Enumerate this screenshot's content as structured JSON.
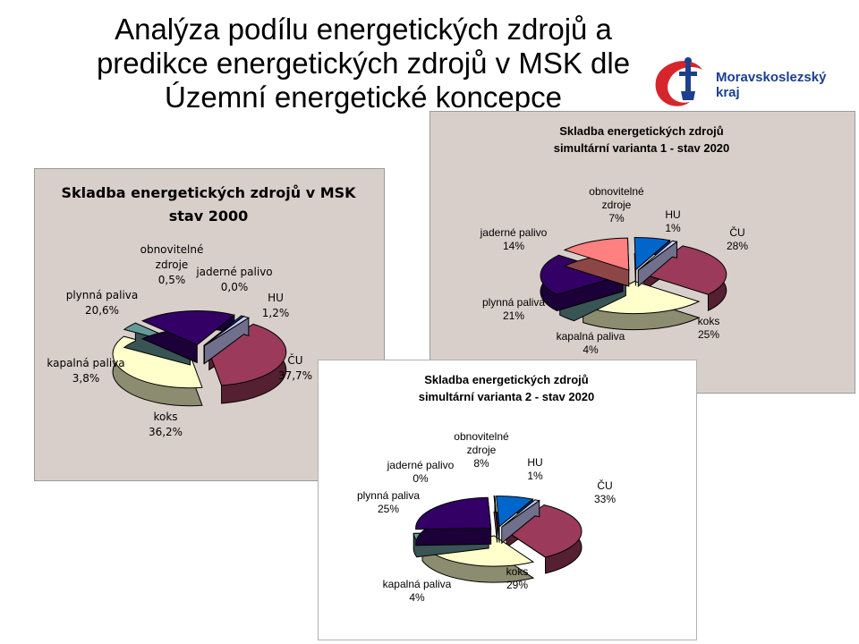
{
  "slide": {
    "title_lines": [
      "Analýza podílu energetických zdrojů a",
      "predikce energetických zdrojů v MSK dle",
      "Územní energetické koncepce"
    ]
  },
  "logo": {
    "text_line1": "Moravskoslezský",
    "text_line2": "kraj"
  },
  "colors": {
    "cu": "#9b3a5a",
    "koks": "#ffffcc",
    "kapalna": "#669999",
    "plynna": "#330066",
    "jaderne": "#ff8080",
    "obnovitelne": "#0066cc",
    "hu": "#ccccff",
    "panel_bg": "#d9cfca"
  },
  "chart_data": [
    {
      "type": "pie",
      "title": "Skladba energetických zdrojů v MSK",
      "subtitle": "stav 2000",
      "labels": [
        "ČU",
        "koks",
        "kapalná paliva",
        "plynná paliva",
        "obnovitelné zdroje",
        "jaderné palivo",
        "HU"
      ],
      "label_lines": [
        [
          "ČU",
          "37,7%"
        ],
        [
          "koks",
          "36,2%"
        ],
        [
          "kapalná paliva",
          "3,8%"
        ],
        [
          "plynná paliva",
          "20,6%"
        ],
        [
          "obnovitelné",
          "zdroje",
          "0,5%"
        ],
        [
          "jaderné palivo",
          "0,0%"
        ],
        [
          "HU",
          "1,2%"
        ]
      ],
      "values": [
        37.7,
        36.2,
        3.8,
        20.6,
        0.5,
        0.0,
        1.2
      ]
    },
    {
      "type": "pie",
      "title": "Skladba energetických zdrojů",
      "subtitle": "simultární varianta 1 - stav 2020",
      "labels": [
        "ČU",
        "koks",
        "kapalná paliva",
        "plynná paliva",
        "jaderné palivo",
        "obnovitelné zdroje",
        "HU"
      ],
      "label_lines": [
        [
          "ČU",
          "28%"
        ],
        [
          "koks",
          "25%"
        ],
        [
          "kapalná paliva",
          "4%"
        ],
        [
          "plynná paliva",
          "21%"
        ],
        [
          "jaderné palivo",
          "14%"
        ],
        [
          "obnovitelné",
          "zdroje",
          "7%"
        ],
        [
          "HU",
          "1%"
        ]
      ],
      "values": [
        28,
        25,
        4,
        21,
        14,
        7,
        1
      ]
    },
    {
      "type": "pie",
      "title": "Skladba energetických zdrojů",
      "subtitle": "simultární varianta 2 - stav 2020",
      "labels": [
        "ČU",
        "koks",
        "kapalná paliva",
        "plynná paliva",
        "jaderné palivo",
        "obnovitelné zdroje",
        "HU"
      ],
      "label_lines": [
        [
          "ČU",
          "33%"
        ],
        [
          "koks",
          "29%"
        ],
        [
          "kapalná paliva",
          "4%"
        ],
        [
          "plynná paliva",
          "25%"
        ],
        [
          "jaderné palivo",
          "0%"
        ],
        [
          "obnovitelné",
          "zdroje",
          "8%"
        ],
        [
          "HU",
          "1%"
        ]
      ],
      "values": [
        33,
        29,
        4,
        25,
        0,
        8,
        1
      ]
    }
  ]
}
